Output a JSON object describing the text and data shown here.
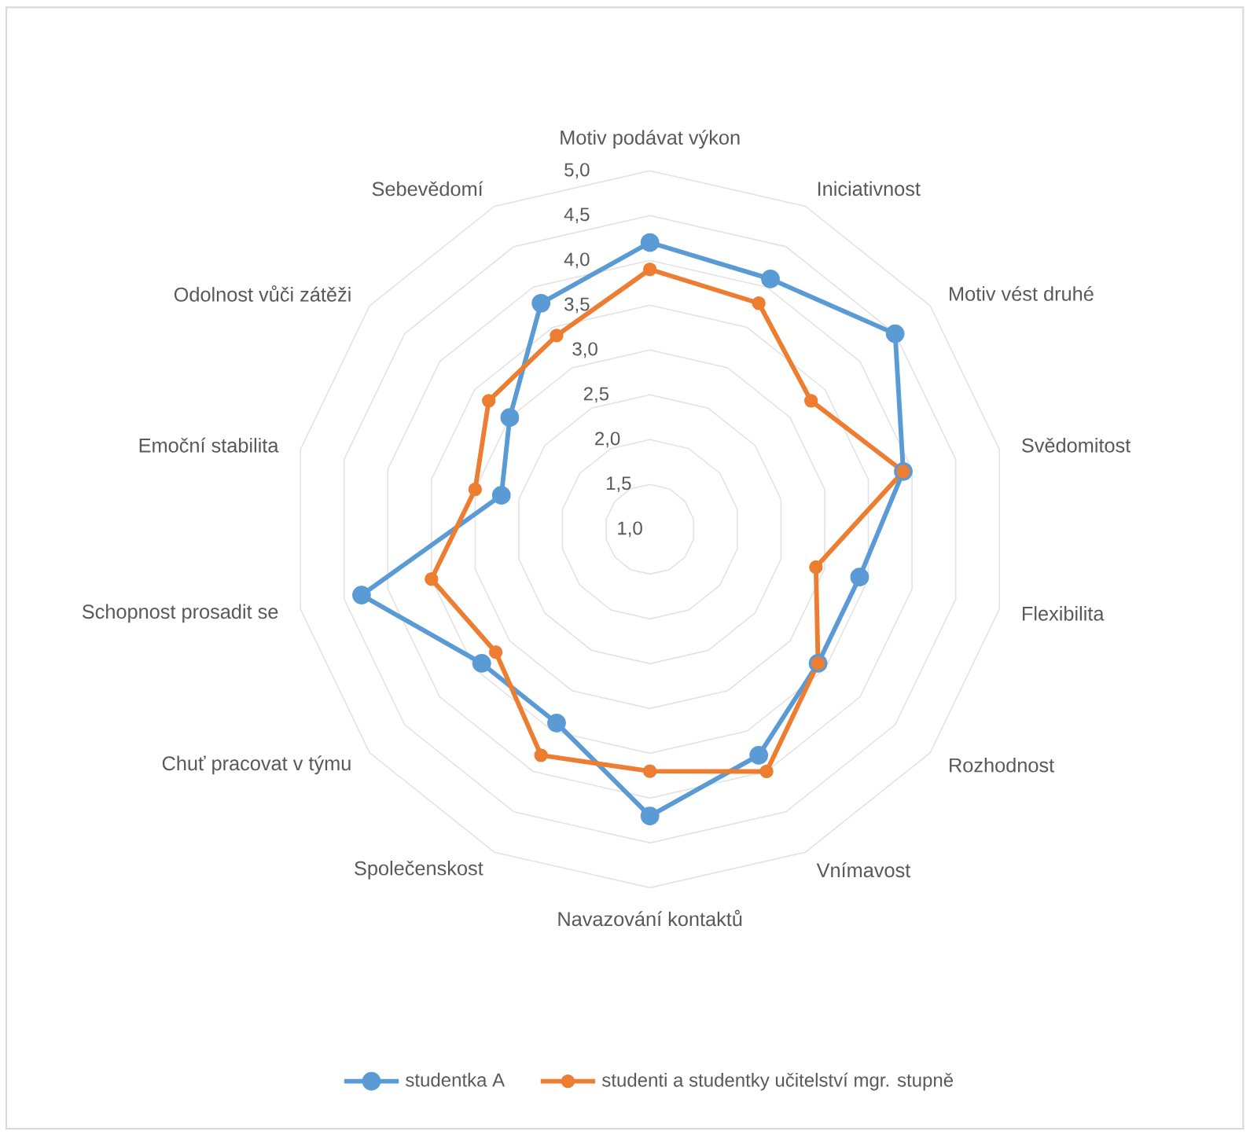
{
  "chart_data": {
    "type": "radar",
    "categories": [
      "Motiv podávat výkon",
      "Iniciativnost",
      "Motiv vést druhé",
      "Svědomitost",
      "Flexibilita",
      "Rozhodnost",
      "Vnímavost",
      "Navazování kontaktů",
      "Společenskost",
      "Chuť pracovat v týmu",
      "Schopnost prosadit se",
      "Emoční stabilita",
      "Odolnost vůči zátěži",
      "Sebevědomí"
    ],
    "series": [
      {
        "name": "studentka A",
        "color": "#5b9bd5",
        "values": [
          4.2,
          4.1,
          4.5,
          3.9,
          3.4,
          3.4,
          3.8,
          4.2,
          3.4,
          3.4,
          4.3,
          2.7,
          3.0,
          3.8
        ]
      },
      {
        "name": "studenti a studentky učitelství mgr. stupně",
        "color": "#ed7d31",
        "values": [
          3.9,
          3.8,
          3.3,
          3.9,
          2.9,
          3.4,
          4.0,
          3.7,
          3.8,
          3.2,
          3.5,
          3.0,
          3.3,
          3.4
        ]
      }
    ],
    "ylim": [
      1.0,
      5.0
    ],
    "yticks": [
      {
        "value": 1.0,
        "label": "1,0"
      },
      {
        "value": 1.5,
        "label": "1,5"
      },
      {
        "value": 2.0,
        "label": "2,0"
      },
      {
        "value": 2.5,
        "label": "2,5"
      },
      {
        "value": 3.0,
        "label": "3,0"
      },
      {
        "value": 3.5,
        "label": "3,5"
      },
      {
        "value": 4.0,
        "label": "4,0"
      },
      {
        "value": 4.5,
        "label": "4,5"
      },
      {
        "value": 5.0,
        "label": "5,0"
      }
    ],
    "grid": true,
    "legend": "bottom",
    "marker": "circle"
  }
}
